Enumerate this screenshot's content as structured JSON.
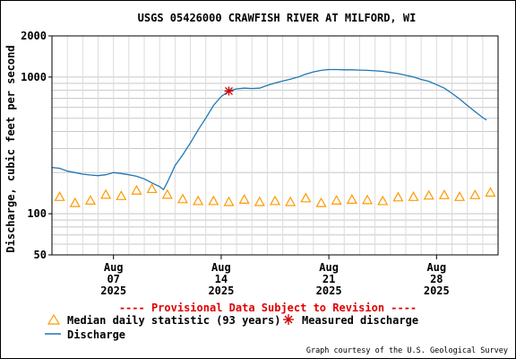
{
  "chart_data": {
    "type": "line",
    "title": "USGS 05426000 CRAWFISH RIVER AT MILFORD, WI",
    "ylabel": "Discharge, cubic feet per second",
    "y_scale": "log",
    "ylim": [
      50,
      2000
    ],
    "y_ticks": [
      {
        "value": 50,
        "label": "50"
      },
      {
        "value": 100,
        "label": "100"
      },
      {
        "value": 1000,
        "label": "1000"
      },
      {
        "value": 2000,
        "label": "2000"
      }
    ],
    "xlim": [
      "2025-08-03",
      "2025-09-01"
    ],
    "x_ticks": [
      {
        "date": "2025-08-07",
        "lines": [
          "Aug",
          "07",
          "2025"
        ]
      },
      {
        "date": "2025-08-14",
        "lines": [
          "Aug",
          "14",
          "2025"
        ]
      },
      {
        "date": "2025-08-21",
        "lines": [
          "Aug",
          "21",
          "2025"
        ]
      },
      {
        "date": "2025-08-28",
        "lines": [
          "Aug",
          "28",
          "2025"
        ]
      }
    ],
    "grid": true,
    "provisional_note": "---- Provisional Data Subject to Revision ----",
    "credit": "Graph courtesy of the U.S. Geological Survey",
    "legend": [
      {
        "label": "Median daily statistic (93 years)",
        "marker": "triangle",
        "color": "#ff9900"
      },
      {
        "label": "Measured discharge",
        "marker": "asterisk",
        "color": "#cc0000"
      },
      {
        "label": "Discharge",
        "marker": "line",
        "color": "#1f77b4"
      }
    ],
    "series": [
      {
        "name": "Discharge",
        "color": "#1f77b4",
        "points": [
          [
            "2025-08-03 00:00",
            218
          ],
          [
            "2025-08-03 12:00",
            215
          ],
          [
            "2025-08-04 00:00",
            205
          ],
          [
            "2025-08-04 12:00",
            200
          ],
          [
            "2025-08-05 00:00",
            195
          ],
          [
            "2025-08-05 12:00",
            192
          ],
          [
            "2025-08-06 00:00",
            190
          ],
          [
            "2025-08-06 12:00",
            193
          ],
          [
            "2025-08-07 00:00",
            200
          ],
          [
            "2025-08-07 12:00",
            197
          ],
          [
            "2025-08-08 00:00",
            193
          ],
          [
            "2025-08-08 12:00",
            188
          ],
          [
            "2025-08-09 00:00",
            180
          ],
          [
            "2025-08-09 12:00",
            168
          ],
          [
            "2025-08-10 00:00",
            158
          ],
          [
            "2025-08-10 06:00",
            150
          ],
          [
            "2025-08-10 12:00",
            170
          ],
          [
            "2025-08-10 18:00",
            195
          ],
          [
            "2025-08-11 00:00",
            225
          ],
          [
            "2025-08-11 12:00",
            270
          ],
          [
            "2025-08-12 00:00",
            330
          ],
          [
            "2025-08-12 12:00",
            410
          ],
          [
            "2025-08-13 00:00",
            500
          ],
          [
            "2025-08-13 12:00",
            620
          ],
          [
            "2025-08-14 00:00",
            720
          ],
          [
            "2025-08-14 12:00",
            790
          ],
          [
            "2025-08-15 00:00",
            820
          ],
          [
            "2025-08-15 12:00",
            830
          ],
          [
            "2025-08-16 00:00",
            825
          ],
          [
            "2025-08-16 12:00",
            830
          ],
          [
            "2025-08-17 00:00",
            870
          ],
          [
            "2025-08-17 12:00",
            905
          ],
          [
            "2025-08-18 00:00",
            935
          ],
          [
            "2025-08-18 12:00",
            965
          ],
          [
            "2025-08-19 00:00",
            1000
          ],
          [
            "2025-08-19 12:00",
            1050
          ],
          [
            "2025-08-20 00:00",
            1090
          ],
          [
            "2025-08-20 12:00",
            1120
          ],
          [
            "2025-08-21 00:00",
            1135
          ],
          [
            "2025-08-21 12:00",
            1135
          ],
          [
            "2025-08-22 00:00",
            1130
          ],
          [
            "2025-08-22 12:00",
            1130
          ],
          [
            "2025-08-23 00:00",
            1125
          ],
          [
            "2025-08-23 12:00",
            1120
          ],
          [
            "2025-08-24 00:00",
            1110
          ],
          [
            "2025-08-24 12:00",
            1100
          ],
          [
            "2025-08-25 00:00",
            1080
          ],
          [
            "2025-08-25 12:00",
            1060
          ],
          [
            "2025-08-26 00:00",
            1030
          ],
          [
            "2025-08-26 12:00",
            1000
          ],
          [
            "2025-08-27 00:00",
            960
          ],
          [
            "2025-08-27 12:00",
            930
          ],
          [
            "2025-08-28 00:00",
            880
          ],
          [
            "2025-08-28 12:00",
            830
          ],
          [
            "2025-08-29 00:00",
            760
          ],
          [
            "2025-08-29 12:00",
            690
          ],
          [
            "2025-08-30 00:00",
            620
          ],
          [
            "2025-08-30 12:00",
            560
          ],
          [
            "2025-08-31 00:00",
            505
          ],
          [
            "2025-08-31 06:00",
            485
          ]
        ]
      },
      {
        "name": "Median daily statistic (93 years)",
        "color": "#ff9900",
        "points": [
          [
            "2025-08-03",
            133
          ],
          [
            "2025-08-04",
            120
          ],
          [
            "2025-08-05",
            125
          ],
          [
            "2025-08-06",
            138
          ],
          [
            "2025-08-07",
            135
          ],
          [
            "2025-08-08",
            148
          ],
          [
            "2025-08-09",
            152
          ],
          [
            "2025-08-10",
            138
          ],
          [
            "2025-08-11",
            128
          ],
          [
            "2025-08-12",
            124
          ],
          [
            "2025-08-13",
            124
          ],
          [
            "2025-08-14",
            122
          ],
          [
            "2025-08-15",
            127
          ],
          [
            "2025-08-16",
            122
          ],
          [
            "2025-08-17",
            124
          ],
          [
            "2025-08-18",
            122
          ],
          [
            "2025-08-19",
            130
          ],
          [
            "2025-08-20",
            120
          ],
          [
            "2025-08-21",
            125
          ],
          [
            "2025-08-22",
            127
          ],
          [
            "2025-08-23",
            126
          ],
          [
            "2025-08-24",
            124
          ],
          [
            "2025-08-25",
            132
          ],
          [
            "2025-08-26",
            133
          ],
          [
            "2025-08-27",
            136
          ],
          [
            "2025-08-28",
            137
          ],
          [
            "2025-08-29",
            133
          ],
          [
            "2025-08-30",
            137
          ],
          [
            "2025-08-31",
            143
          ]
        ]
      },
      {
        "name": "Measured discharge",
        "color": "#cc0000",
        "points": [
          [
            "2025-08-14 12:00",
            790
          ]
        ]
      }
    ]
  }
}
